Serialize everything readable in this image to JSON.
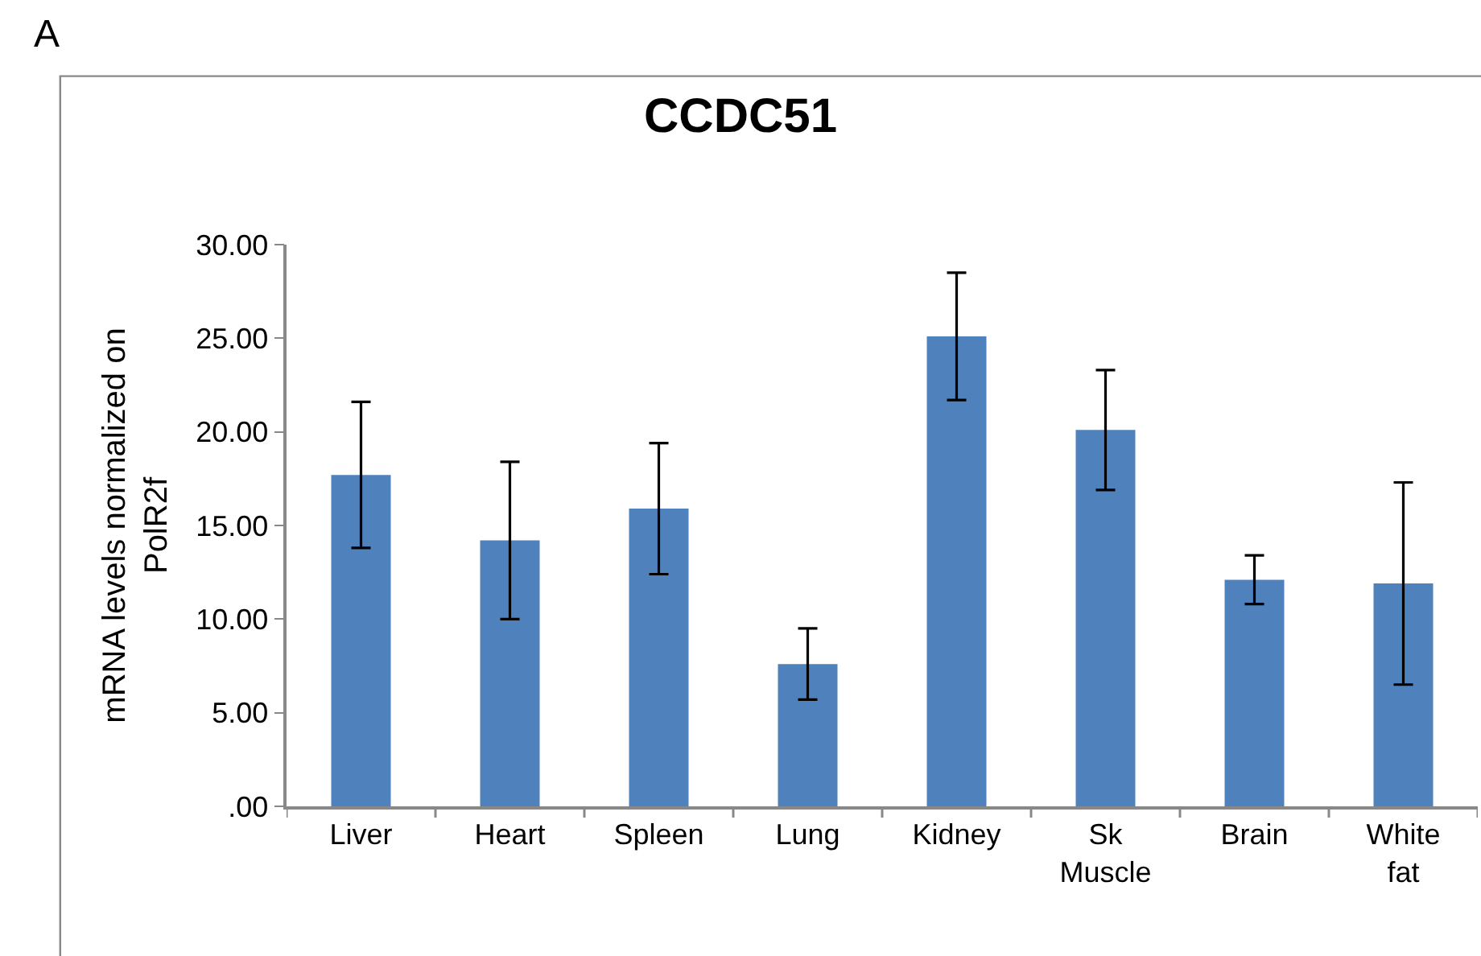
{
  "chart_data": {
    "type": "bar",
    "title": "CCDC51",
    "ylabel": "mRNA levels normalized on\nPolR2f",
    "annotations": [
      "A"
    ],
    "categories": [
      "Liver",
      "Heart",
      "Spleen",
      "Lung",
      "Kidney",
      "Sk\nMuscle",
      "Brain",
      "White\nfat"
    ],
    "values": [
      17.7,
      14.2,
      15.9,
      7.6,
      25.1,
      20.1,
      12.1,
      11.9
    ],
    "errors": [
      3.9,
      4.2,
      3.5,
      1.9,
      3.4,
      3.2,
      1.3,
      5.4
    ],
    "color": "#4f81bd",
    "ylim": [
      0,
      30
    ],
    "yticks": [
      {
        "value": 0,
        "label": ".00"
      },
      {
        "value": 5,
        "label": "5.00"
      },
      {
        "value": 10,
        "label": "10.00"
      },
      {
        "value": 15,
        "label": "15.00"
      },
      {
        "value": 20,
        "label": "20.00"
      },
      {
        "value": 25,
        "label": "25.00"
      },
      {
        "value": 30,
        "label": "30.00"
      }
    ],
    "legend": false
  }
}
